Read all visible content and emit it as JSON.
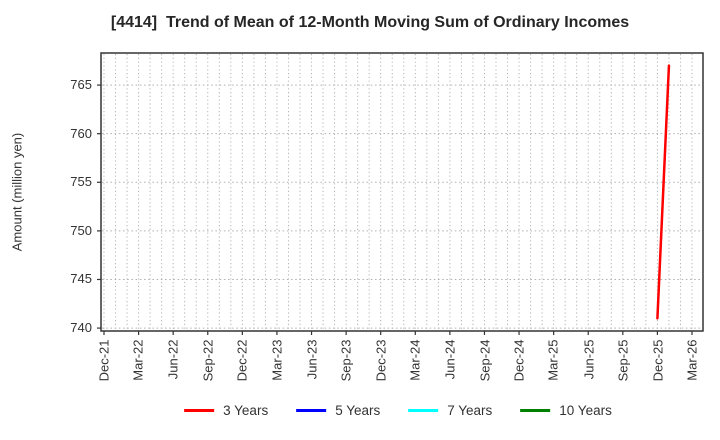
{
  "chart_data": {
    "type": "line",
    "title": "[4414]  Trend of Mean of 12-Month Moving Sum of Ordinary Incomes",
    "xlabel": "",
    "ylabel": "Amount (million yen)",
    "x_tick_labels": [
      "Dec-21",
      "Mar-22",
      "Jun-22",
      "Sep-22",
      "Dec-22",
      "Mar-23",
      "Jun-23",
      "Sep-23",
      "Dec-23",
      "Mar-24",
      "Jun-24",
      "Sep-24",
      "Dec-24",
      "Mar-25",
      "Jun-25",
      "Sep-25",
      "Dec-25",
      "Mar-26"
    ],
    "months_per_tick": 3,
    "x_minor_grid_interval_months": 1,
    "y_ticks": [
      740,
      745,
      750,
      755,
      760,
      765
    ],
    "ylim": [
      739.7,
      768.3
    ],
    "grid": {
      "style": "dotted",
      "color": "#b3b3b3",
      "vertical": "monthly",
      "horizontal": "at each y tick"
    },
    "legend_position": "bottom center",
    "series": [
      {
        "name": "3 Years",
        "color": "#ff0000",
        "points": [
          {
            "x_label": "Dec-25",
            "month_index": 48,
            "value": 741
          },
          {
            "x_label": "Jan-26",
            "month_index": 49,
            "value": 767
          }
        ]
      },
      {
        "name": "5 Years",
        "color": "#0000ff",
        "points": []
      },
      {
        "name": "7 Years",
        "color": "#00ffff",
        "points": []
      },
      {
        "name": "10 Years",
        "color": "#008000",
        "points": []
      }
    ]
  }
}
